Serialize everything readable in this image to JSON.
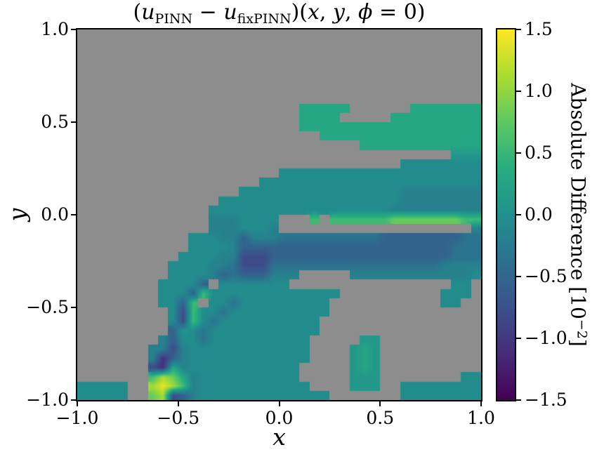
{
  "figure": {
    "background": "#ffffff",
    "title": {
      "open": "(",
      "var1": "u",
      "sub1": "PINN",
      "operator": " − ",
      "var2": "u",
      "sub2": "fixPINN",
      "mid": ")(",
      "arg1": "x",
      "comma1": ", ",
      "arg2": "y",
      "comma2": ", ",
      "arg3": "ϕ",
      "tail": " = 0)"
    }
  },
  "chart_data": {
    "type": "heatmap",
    "title": "(u_PINN − u_fixPINN)(x, y, ϕ = 0)",
    "xlabel": "x",
    "ylabel": "y",
    "xlim": [
      -1.0,
      1.0
    ],
    "ylim": [
      -1.0,
      1.0
    ],
    "x_tick_labels": [
      "−1.0",
      "−0.5",
      "0.0",
      "0.5",
      "1.0"
    ],
    "x_tick_values": [
      -1.0,
      -0.5,
      0.0,
      0.5,
      1.0
    ],
    "y_tick_labels": [
      "1.0",
      "0.5",
      "0.0",
      "−0.5",
      "−1.0"
    ],
    "y_tick_values": [
      1.0,
      0.5,
      0.0,
      -0.5,
      -1.0
    ],
    "grid_lines": false,
    "units": "10⁻²",
    "masked_color": "#8d8d8d",
    "colorbar": {
      "label": "Absolute Difference [10⁻²]",
      "label_main": "Absolute Difference [10",
      "label_sup": "−2",
      "label_close": "]",
      "tick_labels": [
        "1.5",
        "1.0",
        "0.5",
        "0.0",
        "−0.5",
        "−1.0",
        "−1.5"
      ],
      "tick_values": [
        1.5,
        1.0,
        0.5,
        0.0,
        -0.5,
        -1.0,
        -1.5
      ],
      "vmin": -1.5,
      "vmax": 1.5,
      "colormap": "viridis",
      "viridis_anchors": [
        "#440154",
        "#472c7a",
        "#3b518b",
        "#2c718e",
        "#21908d",
        "#27ad81",
        "#5dc863",
        "#aadc32",
        "#fde725"
      ]
    },
    "heatmap_grid": {
      "encoding": "40×40 cells; row 0 = y≈+1 (top), col 0 = x≈−1 (left); '.' = masked (gray); letters map to approximate values in units of 10⁻²",
      "ncols": 40,
      "nrows": 40,
      "value_key": {
        "a": -1.1,
        "b": -0.8,
        "c": -0.55,
        "d": -0.35,
        "e": -0.18,
        "f": -0.05,
        "g": 0.1,
        "h": 0.3,
        "i": 0.55,
        "j": 0.8,
        "k": 1.1,
        "l": 1.4
      },
      "rows": [
        "........................................",
        "........................................",
        "........................................",
        "........................................",
        "........................................",
        "........................................",
        "........................................",
        "........................................",
        "......................hhhhh......hhhhhhh",
        "......................hhhh.....hhhhhhhhh",
        "......................hhhhhhhhhhhhhhhhhh",
        "........................hhhhhhhhhhhhhhhh",
        "............................hhhhhhhhhhhh",
        ".....................................ggg",
        "................................ffffffff",
        "....................ffffffffffffffffffff",
        "..................ffffffffffffffffffffff",
        "................ffffffffffffffffeeeeeeee",
        "..............ffffffffffffffffffeeeeeeee",
        ".............ffffffffffffffffffeeeeeeeee",
        ".............eeeffff...i.iiiiiijjjjjjjii",
        ".............eeefffe...................e",
        "...........fffeeceeeddddddddddccccccccdd",
        "...........ffffecccccccccccccccccccccddd",
        "..........ffffeebbbccccccccccccccccccddd",
        ".........ffffeedbbbdddddddddddddddddeeee",
        ".........ffffecdccceee.....eeeeeeeeeeeef",
        "........ffffc.fffffff................ff.",
        "........fffcifffffffffffff..........fff.",
        "........ffci.ffdfffffffff...........ff..",
        ".........fbiffdffffffffff...............",
        ".........fbifdffffffffff................",
        ".........cgfdfffffffffff................",
        "........ecffdffffffffff.....gg..........",
        ".......eebeffffffffffff....ghg..........",
        ".......eaceffffffffffff....ghg..........",
        ".......bahefffffffffff.....ghg..........",
        ".......ikjheffffffffff.....ggg........ff",
        "fffff..klkiefffffffffff....ggg..ffffffff",
        "fffff..jkbcefffffffffffff.......ffffffff"
      ]
    }
  }
}
